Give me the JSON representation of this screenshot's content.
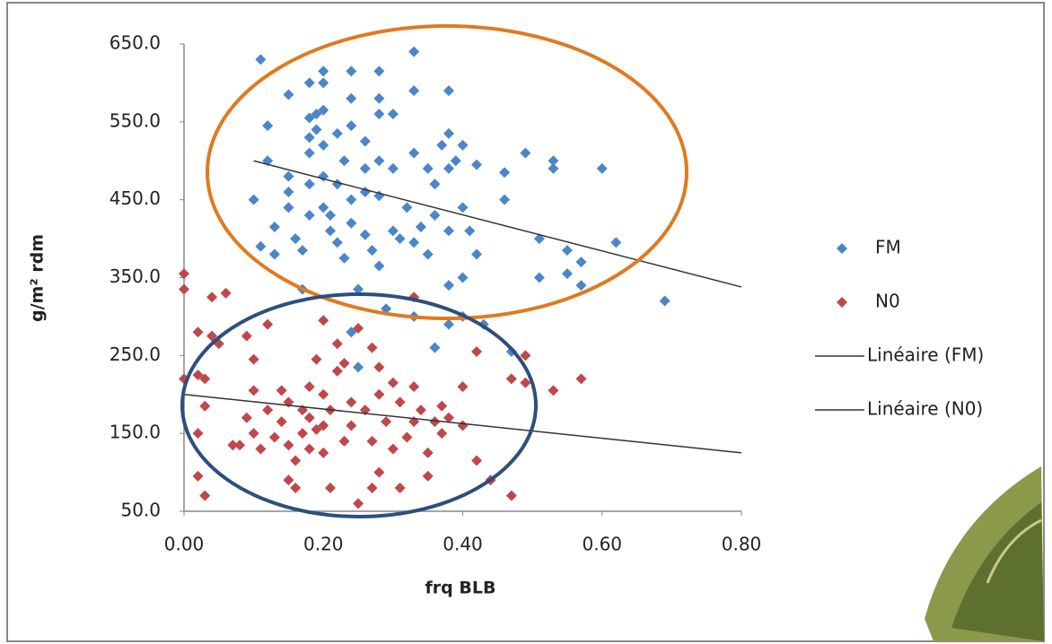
{
  "chart_data": {
    "type": "scatter",
    "x_label": "frq BLB",
    "y_label": "g/m² rdm",
    "xlim": [
      0,
      0.8
    ],
    "ylim": [
      50,
      650
    ],
    "xticks": [
      {
        "value": 0,
        "label": "0.00"
      },
      {
        "value": 0.2,
        "label": "0.20"
      },
      {
        "value": 0.4,
        "label": "0.40"
      },
      {
        "value": 0.6,
        "label": "0.60"
      },
      {
        "value": 0.8,
        "label": "0.80"
      }
    ],
    "yticks": [
      {
        "value": 50,
        "label": "50.0"
      },
      {
        "value": 150,
        "label": "150.0"
      },
      {
        "value": 250,
        "label": "250.0"
      },
      {
        "value": 350,
        "label": "350.0"
      },
      {
        "value": 450,
        "label": "450.0"
      },
      {
        "value": 550,
        "label": "550.0"
      },
      {
        "value": 650,
        "label": "650.0"
      }
    ],
    "grid": false,
    "legend": "right",
    "series": [
      {
        "name": "FM",
        "color": "#4a86c8",
        "x": [
          0.11,
          0.12,
          0.12,
          0.1,
          0.11,
          0.13,
          0.13,
          0.15,
          0.15,
          0.15,
          0.15,
          0.16,
          0.17,
          0.17,
          0.18,
          0.18,
          0.18,
          0.18,
          0.18,
          0.18,
          0.19,
          0.19,
          0.2,
          0.2,
          0.2,
          0.2,
          0.2,
          0.2,
          0.21,
          0.21,
          0.22,
          0.22,
          0.22,
          0.23,
          0.23,
          0.24,
          0.24,
          0.24,
          0.24,
          0.24,
          0.25,
          0.24,
          0.25,
          0.26,
          0.26,
          0.26,
          0.26,
          0.27,
          0.28,
          0.28,
          0.28,
          0.28,
          0.28,
          0.28,
          0.29,
          0.3,
          0.3,
          0.3,
          0.31,
          0.32,
          0.33,
          0.33,
          0.33,
          0.33,
          0.33,
          0.34,
          0.35,
          0.35,
          0.36,
          0.36,
          0.36,
          0.37,
          0.38,
          0.38,
          0.38,
          0.38,
          0.38,
          0.38,
          0.39,
          0.4,
          0.4,
          0.4,
          0.4,
          0.41,
          0.42,
          0.42,
          0.43,
          0.46,
          0.46,
          0.47,
          0.49,
          0.51,
          0.51,
          0.53,
          0.53,
          0.55,
          0.55,
          0.57,
          0.57,
          0.6,
          0.62,
          0.69
        ],
        "values": [
          630,
          545,
          500,
          450,
          390,
          415,
          380,
          585,
          480,
          460,
          440,
          400,
          385,
          335,
          600,
          555,
          530,
          510,
          470,
          430,
          560,
          540,
          615,
          600,
          565,
          520,
          480,
          440,
          430,
          410,
          535,
          470,
          395,
          500,
          375,
          615,
          580,
          545,
          450,
          420,
          335,
          280,
          235,
          525,
          490,
          460,
          405,
          385,
          615,
          580,
          560,
          500,
          455,
          365,
          310,
          560,
          490,
          410,
          400,
          440,
          640,
          590,
          510,
          395,
          300,
          415,
          490,
          380,
          470,
          430,
          260,
          520,
          590,
          535,
          490,
          410,
          340,
          290,
          500,
          520,
          440,
          350,
          300,
          410,
          495,
          380,
          290,
          485,
          450,
          255,
          510,
          400,
          350,
          500,
          490,
          385,
          355,
          370,
          340,
          490,
          395,
          320
        ]
      },
      {
        "name": "N0",
        "color": "#c0474a",
        "x": [
          0.0,
          0.0,
          0.0,
          0.02,
          0.02,
          0.02,
          0.02,
          0.03,
          0.03,
          0.03,
          0.04,
          0.04,
          0.05,
          0.06,
          0.07,
          0.08,
          0.09,
          0.09,
          0.1,
          0.1,
          0.1,
          0.11,
          0.12,
          0.12,
          0.13,
          0.14,
          0.14,
          0.15,
          0.15,
          0.15,
          0.16,
          0.16,
          0.17,
          0.17,
          0.18,
          0.18,
          0.18,
          0.19,
          0.19,
          0.2,
          0.2,
          0.2,
          0.2,
          0.21,
          0.21,
          0.22,
          0.22,
          0.23,
          0.23,
          0.24,
          0.24,
          0.25,
          0.25,
          0.26,
          0.27,
          0.27,
          0.27,
          0.28,
          0.28,
          0.28,
          0.29,
          0.3,
          0.3,
          0.31,
          0.31,
          0.32,
          0.33,
          0.33,
          0.33,
          0.34,
          0.35,
          0.35,
          0.36,
          0.37,
          0.37,
          0.38,
          0.4,
          0.4,
          0.42,
          0.42,
          0.44,
          0.47,
          0.47,
          0.49,
          0.49,
          0.53,
          0.57
        ],
        "values": [
          355,
          335,
          220,
          280,
          225,
          150,
          95,
          220,
          185,
          70,
          325,
          275,
          265,
          330,
          135,
          135,
          275,
          170,
          245,
          205,
          150,
          130,
          290,
          180,
          145,
          205,
          165,
          190,
          135,
          90,
          80,
          115,
          180,
          150,
          210,
          170,
          130,
          245,
          155,
          295,
          200,
          160,
          125,
          180,
          80,
          230,
          265,
          240,
          140,
          190,
          160,
          285,
          60,
          180,
          260,
          140,
          80,
          235,
          200,
          100,
          165,
          215,
          130,
          80,
          190,
          145,
          325,
          210,
          165,
          180,
          125,
          95,
          165,
          185,
          150,
          170,
          210,
          160,
          255,
          115,
          90,
          220,
          70,
          250,
          215,
          205,
          220
        ]
      }
    ],
    "trendlines": [
      {
        "name": "Linéaire (FM)",
        "color": "#333333",
        "x": [
          0.1,
          0.8
        ],
        "values": [
          500,
          338
        ]
      },
      {
        "name": "Linéaire (N0)",
        "color": "#333333",
        "x": [
          0.0,
          0.8
        ],
        "values": [
          200,
          125
        ]
      }
    ]
  }
}
